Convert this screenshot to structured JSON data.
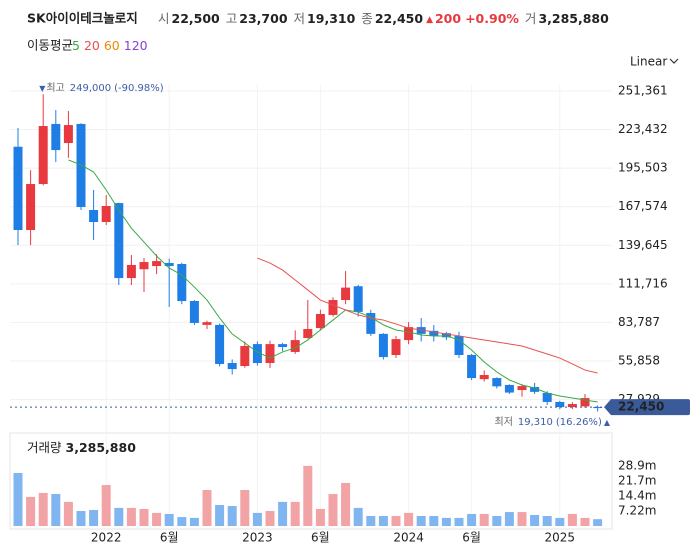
{
  "header": {
    "name": "SK아이이테크놀로지",
    "stats": [
      {
        "label": "시",
        "value": "22,500"
      },
      {
        "label": "고",
        "value": "23,700"
      },
      {
        "label": "저",
        "value": "19,310"
      },
      {
        "label": "종",
        "value": "22,450"
      }
    ],
    "change": "200",
    "change_pct": "+0.90%",
    "volume_label": "거",
    "volume": "3,285,880"
  },
  "chart_data": [
    {
      "type": "candlestick",
      "scale": "Linear",
      "grid": true,
      "categories": [
        null,
        null,
        null,
        null,
        null,
        null,
        null,
        "2022",
        null,
        null,
        null,
        null,
        "6월",
        null,
        null,
        null,
        null,
        null,
        null,
        "2023",
        null,
        null,
        null,
        null,
        "6월",
        null,
        null,
        null,
        null,
        null,
        null,
        "2024",
        null,
        null,
        null,
        null,
        "6월",
        null,
        null,
        null,
        null,
        null,
        null,
        "2025",
        null,
        null,
        null
      ],
      "open": [
        211000,
        150700,
        184000,
        227500,
        213700,
        227500,
        165200,
        156500,
        170200,
        115900,
        122300,
        124600,
        126800,
        126100,
        99300,
        82000,
        82000,
        54400,
        52200,
        68100,
        54400,
        68100,
        62400,
        72500,
        79700,
        89200,
        100000,
        110000,
        90600,
        75500,
        60200,
        71000,
        80400,
        77700,
        76000,
        74000,
        60200,
        42700,
        43500,
        38500,
        34800,
        37000,
        32700,
        26200,
        22500,
        23000,
        22500
      ],
      "high": [
        224600,
        194000,
        249000,
        237600,
        236900,
        228000,
        179700,
        176000,
        170500,
        132600,
        130400,
        133200,
        130000,
        127000,
        100000,
        85000,
        83000,
        57000,
        70000,
        70000,
        70500,
        69000,
        78000,
        100000,
        93000,
        102000,
        121000,
        111000,
        93000,
        76000,
        74000,
        84000,
        87000,
        82000,
        77000,
        77000,
        61000,
        49000,
        44000,
        39000,
        39000,
        40000,
        34000,
        27000,
        26000,
        32000,
        23700
      ],
      "low": [
        139800,
        139800,
        183000,
        199900,
        203000,
        165200,
        143500,
        154300,
        110900,
        110900,
        105800,
        118800,
        95000,
        97000,
        81900,
        79000,
        52000,
        46000,
        51000,
        52500,
        50800,
        63000,
        61000,
        72000,
        78000,
        88000,
        97000,
        88000,
        74000,
        57000,
        58000,
        68000,
        70000,
        70000,
        71000,
        58000,
        42000,
        41000,
        36000,
        32000,
        30000,
        32000,
        24000,
        21000,
        21000,
        22000,
        19310
      ],
      "close": [
        150700,
        184000,
        226000,
        208600,
        226700,
        167400,
        156500,
        168100,
        115900,
        125400,
        127500,
        128200,
        124600,
        99300,
        83400,
        84000,
        53700,
        50000,
        66700,
        54400,
        68100,
        66000,
        71000,
        79000,
        89900,
        100000,
        109000,
        91400,
        75500,
        58700,
        71700,
        80400,
        75500,
        74000,
        73000,
        60200,
        43500,
        45700,
        37500,
        33000,
        37700,
        33500,
        26200,
        22500,
        24700,
        29000,
        22450
      ],
      "up_color": "#e8393f",
      "down_color": "#1f7de6",
      "ylim": [
        18925,
        255706
      ],
      "yticks": [
        {
          "value": 251361,
          "label": "251,361"
        },
        {
          "value": 223432,
          "label": "223,432"
        },
        {
          "value": 195503,
          "label": "195,503"
        },
        {
          "value": 167574,
          "label": "167,574"
        },
        {
          "value": 139645,
          "label": "139,645"
        },
        {
          "value": 111716,
          "label": "111,716"
        },
        {
          "value": 83787,
          "label": "83,787"
        },
        {
          "value": 55858,
          "label": "55,858"
        },
        {
          "value": 27929,
          "label": "27,929"
        }
      ],
      "legend_title": "이동평균",
      "series": [
        {
          "name": "5",
          "color": "#39a845",
          "values": [
            null,
            null,
            null,
            null,
            201400,
            197800,
            192700,
            179700,
            165200,
            152000,
            142000,
            131900,
            123200,
            118100,
            109400,
            100000,
            87000,
            75400,
            68900,
            62400,
            58000,
            62400,
            65300,
            71100,
            78300,
            85500,
            92800,
            91300,
            87700,
            82000,
            78300,
            76900,
            74700,
            74000,
            74000,
            71100,
            63800,
            55100,
            47900,
            42100,
            38500,
            36300,
            32700,
            30500,
            29100,
            27600,
            26200
          ]
        },
        {
          "name": "20",
          "color": "#e8504f",
          "values": [
            null,
            null,
            null,
            null,
            null,
            null,
            null,
            null,
            null,
            null,
            null,
            null,
            null,
            null,
            null,
            null,
            null,
            null,
            null,
            130400,
            126800,
            121700,
            114500,
            107300,
            100000,
            96400,
            92800,
            89200,
            87000,
            85500,
            82600,
            79700,
            78300,
            76900,
            75400,
            74000,
            72500,
            71100,
            69600,
            68200,
            66700,
            63800,
            60900,
            58000,
            53700,
            49300,
            47200
          ]
        },
        {
          "name": "60",
          "color": "#f08a00"
        },
        {
          "name": "120",
          "color": "#8a3fd9"
        }
      ],
      "max_note": {
        "text": "최고",
        "value": "249,000",
        "change": "(-90.98%)"
      },
      "min_note": {
        "text": "최저",
        "value": "19,310",
        "change": "(16.26%)"
      },
      "last_price": {
        "value": 22450,
        "label": "22,450"
      }
    },
    {
      "type": "bar",
      "title": "거래량",
      "title_value": "3,285,880",
      "values": [
        25500000,
        14000000,
        15900000,
        15400000,
        11600000,
        7200000,
        7700000,
        19700000,
        8700000,
        8700000,
        8200000,
        6300000,
        5800000,
        4300000,
        3900000,
        17300000,
        10100000,
        9600000,
        17300000,
        6300000,
        7200000,
        11600000,
        11600000,
        28900000,
        8200000,
        15400000,
        20700000,
        8700000,
        4800000,
        4800000,
        4800000,
        6300000,
        4800000,
        4800000,
        3900000,
        3900000,
        5800000,
        5800000,
        4800000,
        6700000,
        6700000,
        5300000,
        4800000,
        3900000,
        5800000,
        3900000,
        3285880
      ],
      "up_color": "#f2a3a6",
      "down_color": "#80b5f0",
      "ylim": [
        0,
        32700000
      ],
      "yticks": [
        {
          "value": 28900000,
          "label": "28.9m"
        },
        {
          "value": 21700000,
          "label": "21.7m"
        },
        {
          "value": 14400000,
          "label": "14.4m"
        },
        {
          "value": 7220000,
          "label": "7.22m"
        }
      ]
    }
  ]
}
